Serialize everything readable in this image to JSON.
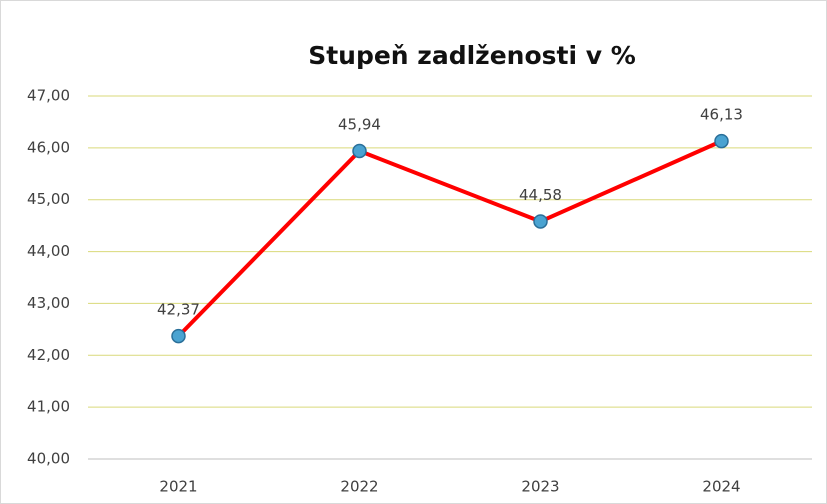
{
  "chart_data": {
    "type": "line",
    "title": "Stupeň zadlženosti v %",
    "categories": [
      "2021",
      "2022",
      "2023",
      "2024"
    ],
    "series": [
      {
        "name": "Stupeň zadlženosti",
        "color": "#ff0000",
        "values": [
          42.37,
          45.94,
          44.58,
          46.13
        ],
        "value_labels": [
          "42,37",
          "45,94",
          "44,58",
          "46,13"
        ]
      }
    ],
    "ylim": [
      40,
      47
    ],
    "yticks": [
      {
        "value": 40,
        "label": "40,00"
      },
      {
        "value": 41,
        "label": "41,00"
      },
      {
        "value": 42,
        "label": "42,00"
      },
      {
        "value": 43,
        "label": "43,00"
      },
      {
        "value": 44,
        "label": "44,00"
      },
      {
        "value": 45,
        "label": "45,00"
      },
      {
        "value": 46,
        "label": "46,00"
      },
      {
        "value": 47,
        "label": "47,00"
      }
    ],
    "grid": true,
    "grid_color": "#ffff00",
    "marker_color": "#4aa3d1"
  }
}
